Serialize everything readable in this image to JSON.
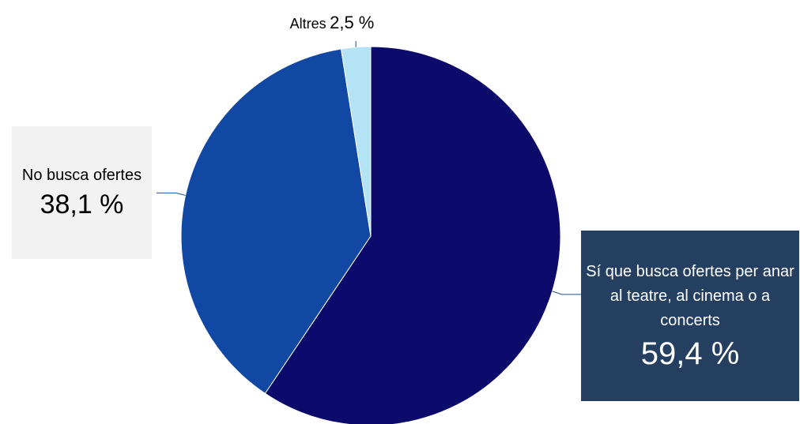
{
  "chart_data": {
    "type": "pie",
    "slices": [
      {
        "label": "Sí que busca ofertes per anar al teatre, al cinema o a concerts",
        "value": 59.4,
        "value_text": "59,4 %",
        "color": "#0c0a6b"
      },
      {
        "label": "No busca ofertes",
        "value": 38.1,
        "value_text": "38,1 %",
        "color": "#1148a3"
      },
      {
        "label": "Altres",
        "value": 2.5,
        "value_text": "2,5 %",
        "color": "#b3e3f5"
      }
    ],
    "start": "12 o'clock, clockwise",
    "legend": "none",
    "label_colors": {
      "si_box": "#243f5f",
      "no_box": "#f2f2f2",
      "leader_line": "#1e4f8c"
    }
  },
  "labels": {
    "si": {
      "name": "Sí que busca ofertes per anar al teatre, al cinema o a concerts",
      "value": "59,4 %"
    },
    "no": {
      "name": "No busca ofertes",
      "value": "38,1 %"
    },
    "altres": {
      "name": "Altres",
      "value": "2,5 %"
    }
  }
}
